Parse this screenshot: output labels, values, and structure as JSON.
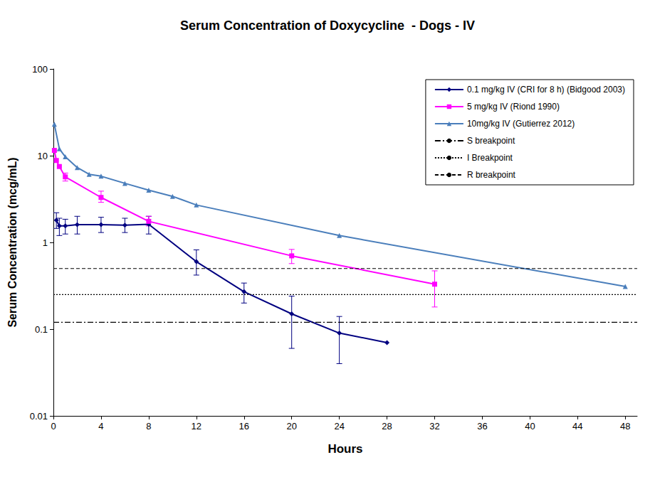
{
  "chart_data": {
    "type": "line",
    "title": "Serum Concentration of Doxycycline  - Dogs - IV",
    "x_label": "Hours",
    "y_label": "Serum Concentration (mcg/mL)",
    "log": "y",
    "grid": false,
    "legend": "top-right",
    "xlim": [
      0,
      49
    ],
    "xticks": [
      0,
      4,
      8,
      12,
      16,
      20,
      24,
      28,
      32,
      36,
      40,
      44,
      48
    ],
    "ylim": [
      0.01,
      100
    ],
    "yticks": [
      0.01,
      0.1,
      1,
      10,
      100
    ],
    "series": [
      {
        "name": "0.1 mg/kg IV (CRI for 8 h) (Bidgood 2003)",
        "color": "#000080",
        "marker": "diamond",
        "line_style": "solid",
        "x": [
          0.25,
          0.5,
          1,
          2,
          4,
          6,
          8,
          12,
          16,
          20,
          24,
          28
        ],
        "values": [
          1.8,
          1.55,
          1.55,
          1.6,
          1.6,
          1.58,
          1.62,
          0.6,
          0.27,
          0.15,
          0.09,
          0.07
        ],
        "error_bars": [
          [
            1.45,
            2.2
          ],
          [
            1.2,
            1.9
          ],
          [
            1.25,
            1.85
          ],
          [
            1.25,
            2.0
          ],
          [
            1.3,
            1.95
          ],
          [
            1.3,
            1.9
          ],
          [
            1.25,
            2.0
          ],
          [
            0.42,
            0.82
          ],
          [
            0.2,
            0.34
          ],
          [
            0.06,
            0.24
          ],
          [
            0.04,
            0.14
          ],
          null
        ]
      },
      {
        "name": "5 mg/kg IV (Riond 1990)",
        "color": "#FF00FF",
        "marker": "square",
        "line_style": "solid",
        "x": [
          0.083,
          0.25,
          0.5,
          1,
          4,
          8,
          20,
          32
        ],
        "values": [
          11.5,
          8.8,
          7.5,
          5.7,
          3.3,
          1.75,
          0.7,
          0.33
        ],
        "error_bars": [
          null,
          null,
          null,
          [
            5.1,
            6.3
          ],
          [
            2.9,
            3.9
          ],
          [
            1.55,
            2.0
          ],
          [
            0.57,
            0.83
          ],
          [
            0.18,
            0.47
          ]
        ]
      },
      {
        "name": "10mg/kg IV (Gutierrez 2012)",
        "color": "#4A7EBB",
        "marker": "triangle",
        "line_style": "solid",
        "x": [
          0.083,
          0.5,
          1,
          2,
          3,
          4,
          6,
          8,
          10,
          12,
          24,
          48
        ],
        "values": [
          23,
          12,
          9.7,
          7.3,
          6.1,
          5.8,
          4.8,
          4.0,
          3.4,
          2.7,
          1.2,
          0.31
        ]
      },
      {
        "name": "S breakpoint",
        "color": "#000000",
        "marker": "none",
        "line_style": "dashdot",
        "x": [
          0,
          49
        ],
        "values": [
          0.12,
          0.12
        ]
      },
      {
        "name": "I Breakpoint",
        "color": "#000000",
        "marker": "none",
        "line_style": "dotted",
        "x": [
          0,
          49
        ],
        "values": [
          0.25,
          0.25
        ]
      },
      {
        "name": "R breakpoint",
        "color": "#000000",
        "marker": "none",
        "line_style": "dashed",
        "x": [
          0,
          49
        ],
        "values": [
          0.5,
          0.5
        ]
      }
    ]
  }
}
